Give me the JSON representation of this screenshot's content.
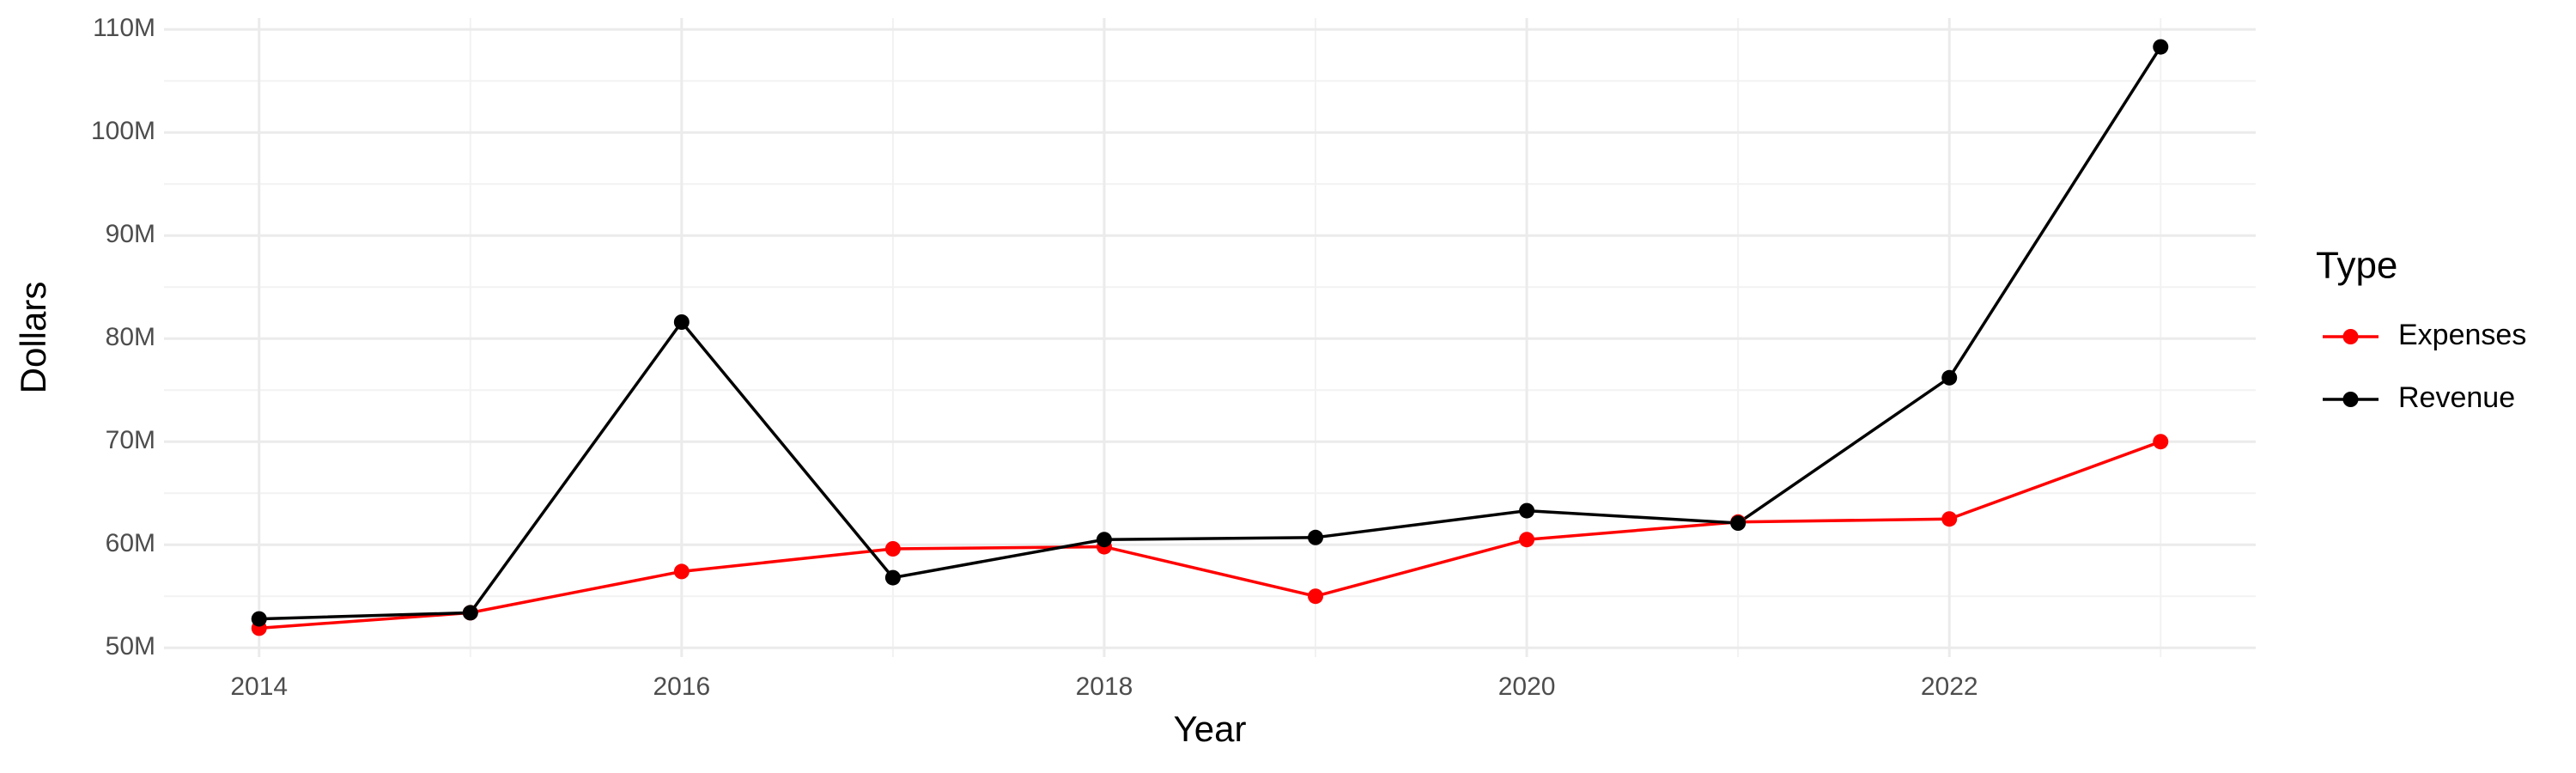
{
  "chart_data": {
    "type": "line",
    "x_label": "Year",
    "y_label": "Dollars",
    "legend_title": "Type",
    "legend": "right",
    "x": [
      2014,
      2015,
      2016,
      2017,
      2018,
      2019,
      2020,
      2021,
      2022,
      2023
    ],
    "series": [
      {
        "name": "Expenses",
        "color": "#ff0000",
        "values": [
          51900000,
          53400000,
          57400000,
          59600000,
          59800000,
          55000000,
          60500000,
          62200000,
          62500000,
          70000000
        ]
      },
      {
        "name": "Revenue",
        "color": "#000000",
        "values": [
          52800000,
          53400000,
          81600000,
          56800000,
          60500000,
          60700000,
          63300000,
          62100000,
          76200000,
          108300000
        ]
      }
    ],
    "xlim": [
      2013.55,
      2023.45
    ],
    "xticks": [
      2014,
      2016,
      2018,
      2020,
      2022
    ],
    "ylim": [
      49100000,
      111100000
    ],
    "yticks": [
      {
        "value": 50000000,
        "label": "50M"
      },
      {
        "value": 60000000,
        "label": "60M"
      },
      {
        "value": 70000000,
        "label": "70M"
      },
      {
        "value": 80000000,
        "label": "80M"
      },
      {
        "value": 90000000,
        "label": "90M"
      },
      {
        "value": 100000000,
        "label": "100M"
      },
      {
        "value": 110000000,
        "label": "110M"
      }
    ],
    "grid": true,
    "minor_grid": true
  }
}
